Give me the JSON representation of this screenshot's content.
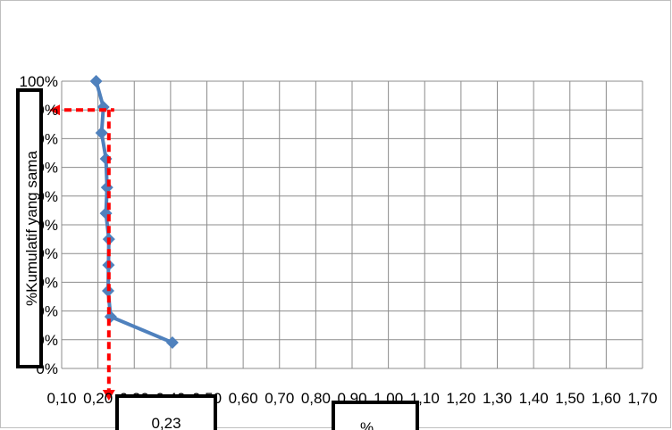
{
  "chart_data": {
    "type": "line",
    "title": "",
    "xlabel": "%",
    "ylabel": "%Kumulatif yang sama",
    "x_ticks": [
      "0,10",
      "0,20",
      "0,30",
      "0,40",
      "0,50",
      "0,60",
      "0,70",
      "0,80",
      "0,90",
      "1,00",
      "1,10",
      "1,20",
      "1,30",
      "1,40",
      "1,50",
      "1,60",
      "1,70"
    ],
    "y_ticks": [
      "0%",
      "10%",
      "20%",
      "30%",
      "40%",
      "50%",
      "60%",
      "70%",
      "80%",
      "90%",
      "100%"
    ],
    "xlim": [
      0.1,
      1.7
    ],
    "ylim": [
      0,
      100
    ],
    "grid": true,
    "series": [
      {
        "color": "#4f81bd",
        "points": [
          {
            "x": 0.405,
            "y": 9
          },
          {
            "x": 0.235,
            "y": 18
          },
          {
            "x": 0.228,
            "y": 27
          },
          {
            "x": 0.229,
            "y": 36
          },
          {
            "x": 0.23,
            "y": 45
          },
          {
            "x": 0.222,
            "y": 54
          },
          {
            "x": 0.225,
            "y": 63
          },
          {
            "x": 0.222,
            "y": 73
          },
          {
            "x": 0.21,
            "y": 82
          },
          {
            "x": 0.215,
            "y": 91
          },
          {
            "x": 0.195,
            "y": 100
          }
        ]
      }
    ],
    "guide": {
      "color": "#ff0000",
      "y": 90,
      "x": 0.23,
      "label": "0,23"
    }
  }
}
